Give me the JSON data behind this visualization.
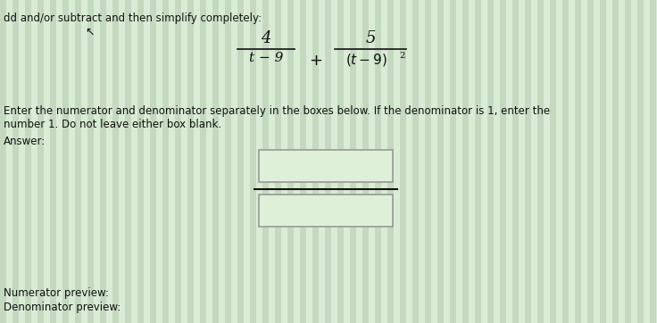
{
  "bg_color": "#cfe0cb",
  "stripe_color1": "#c5d9c0",
  "stripe_color2": "#daecd5",
  "title_text": "dd and/or subtract and then simplify completely:",
  "formula_num1": "4",
  "formula_den1": "t − 9",
  "formula_plus": "+",
  "formula_num2": "5",
  "formula_den2": "(t − 9)",
  "formula_den2_exp": "2",
  "instruction_line1": "Enter the numerator and denominator separately in the boxes below. If the denominator is 1, enter the",
  "instruction_line2": "number 1. Do not leave either box blank.",
  "answer_label": "Answer:",
  "numerator_label": "Numerator preview:",
  "denominator_label": "Denominator preview:",
  "box_facecolor": "#dff0d8",
  "box_edgecolor": "#999999",
  "text_color": "#111111",
  "fraction_line_color": "#111111",
  "figsize": [
    7.36,
    3.62
  ],
  "dpi": 100
}
